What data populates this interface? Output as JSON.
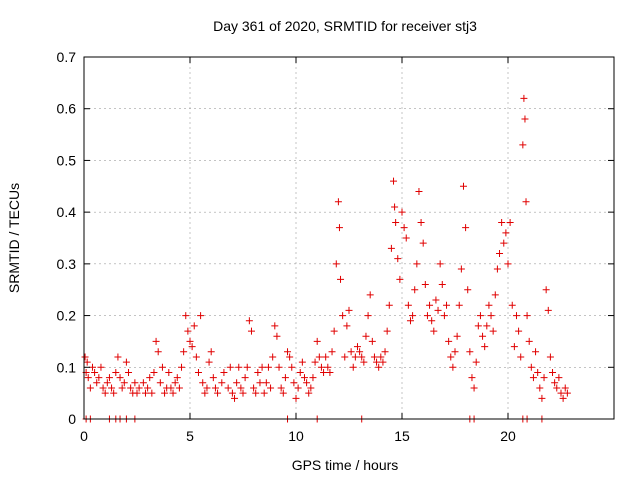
{
  "chart_data": {
    "type": "scatter",
    "title": "Day 361 of 2020, SRMTID for receiver stj3",
    "xlabel": "GPS time / hours",
    "ylabel": "SRMTID / TECUs",
    "xlim": [
      0,
      25
    ],
    "ylim": [
      0,
      0.7
    ],
    "x_ticks": [
      0,
      5,
      10,
      15,
      20
    ],
    "y_ticks": [
      0,
      0.1,
      0.2,
      0.3,
      0.4,
      0.5,
      0.6,
      0.7
    ],
    "x_tick_labels": [
      "0",
      "5",
      "10",
      "15",
      "20"
    ],
    "y_tick_labels": [
      "0",
      "0.1",
      "0.2",
      "0.3",
      "0.4",
      "0.5",
      "0.6",
      "0.7"
    ],
    "grid": true,
    "marker": "+",
    "color": "#e00000",
    "series": [
      {
        "name": "SRMTID",
        "points": [
          [
            0.05,
            0.12
          ],
          [
            0.1,
            0.09
          ],
          [
            0.15,
            0.11
          ],
          [
            0.2,
            0.08
          ],
          [
            0.3,
            0.06
          ],
          [
            0.4,
            0.1
          ],
          [
            0.5,
            0.09
          ],
          [
            0.6,
            0.07
          ],
          [
            0.7,
            0.08
          ],
          [
            0.8,
            0.1
          ],
          [
            0.9,
            0.06
          ],
          [
            1.0,
            0.05
          ],
          [
            1.1,
            0.07
          ],
          [
            1.2,
            0.08
          ],
          [
            1.3,
            0.06
          ],
          [
            1.4,
            0.05
          ],
          [
            1.5,
            0.09
          ],
          [
            1.6,
            0.12
          ],
          [
            1.7,
            0.08
          ],
          [
            1.8,
            0.06
          ],
          [
            1.9,
            0.07
          ],
          [
            2.0,
            0.11
          ],
          [
            2.1,
            0.09
          ],
          [
            2.2,
            0.06
          ],
          [
            2.3,
            0.05
          ],
          [
            2.4,
            0.07
          ],
          [
            2.5,
            0.05
          ],
          [
            2.6,
            0.06
          ],
          [
            2.8,
            0.07
          ],
          [
            2.9,
            0.05
          ],
          [
            3.0,
            0.06
          ],
          [
            3.1,
            0.08
          ],
          [
            3.2,
            0.05
          ],
          [
            3.3,
            0.09
          ],
          [
            3.4,
            0.15
          ],
          [
            3.5,
            0.13
          ],
          [
            3.6,
            0.07
          ],
          [
            3.7,
            0.1
          ],
          [
            3.8,
            0.05
          ],
          [
            3.9,
            0.06
          ],
          [
            4.0,
            0.09
          ],
          [
            4.1,
            0.06
          ],
          [
            4.2,
            0.05
          ],
          [
            4.3,
            0.07
          ],
          [
            4.4,
            0.08
          ],
          [
            4.5,
            0.06
          ],
          [
            4.6,
            0.1
          ],
          [
            4.7,
            0.13
          ],
          [
            4.8,
            0.2
          ],
          [
            4.9,
            0.17
          ],
          [
            5.0,
            0.15
          ],
          [
            5.1,
            0.14
          ],
          [
            5.2,
            0.18
          ],
          [
            5.3,
            0.12
          ],
          [
            5.4,
            0.09
          ],
          [
            5.5,
            0.2
          ],
          [
            5.6,
            0.07
          ],
          [
            5.7,
            0.05
          ],
          [
            5.8,
            0.06
          ],
          [
            5.9,
            0.11
          ],
          [
            6.0,
            0.13
          ],
          [
            6.1,
            0.08
          ],
          [
            6.2,
            0.06
          ],
          [
            6.3,
            0.05
          ],
          [
            6.5,
            0.07
          ],
          [
            6.6,
            0.09
          ],
          [
            6.8,
            0.06
          ],
          [
            6.9,
            0.1
          ],
          [
            7.0,
            0.05
          ],
          [
            7.1,
            0.04
          ],
          [
            7.2,
            0.07
          ],
          [
            7.3,
            0.1
          ],
          [
            7.4,
            0.06
          ],
          [
            7.5,
            0.05
          ],
          [
            7.6,
            0.08
          ],
          [
            7.7,
            0.1
          ],
          [
            7.8,
            0.19
          ],
          [
            7.9,
            0.17
          ],
          [
            8.0,
            0.06
          ],
          [
            8.1,
            0.05
          ],
          [
            8.2,
            0.09
          ],
          [
            8.3,
            0.07
          ],
          [
            8.4,
            0.1
          ],
          [
            8.5,
            0.05
          ],
          [
            8.6,
            0.07
          ],
          [
            8.7,
            0.1
          ],
          [
            8.8,
            0.06
          ],
          [
            8.9,
            0.12
          ],
          [
            9.0,
            0.18
          ],
          [
            9.1,
            0.16
          ],
          [
            9.2,
            0.1
          ],
          [
            9.3,
            0.06
          ],
          [
            9.4,
            0.05
          ],
          [
            9.5,
            0.08
          ],
          [
            9.6,
            0.13
          ],
          [
            9.7,
            0.12
          ],
          [
            9.8,
            0.1
          ],
          [
            9.9,
            0.07
          ],
          [
            10.0,
            0.04
          ],
          [
            10.1,
            0.06
          ],
          [
            10.2,
            0.09
          ],
          [
            10.3,
            0.11
          ],
          [
            10.4,
            0.08
          ],
          [
            10.5,
            0.07
          ],
          [
            10.6,
            0.05
          ],
          [
            10.7,
            0.06
          ],
          [
            10.8,
            0.08
          ],
          [
            10.9,
            0.11
          ],
          [
            11.0,
            0.15
          ],
          [
            11.1,
            0.12
          ],
          [
            11.2,
            0.1
          ],
          [
            11.3,
            0.09
          ],
          [
            11.4,
            0.12
          ],
          [
            11.5,
            0.1
          ],
          [
            11.6,
            0.09
          ],
          [
            11.7,
            0.13
          ],
          [
            11.8,
            0.17
          ],
          [
            11.9,
            0.3
          ],
          [
            12.0,
            0.42
          ],
          [
            12.05,
            0.37
          ],
          [
            12.1,
            0.27
          ],
          [
            12.2,
            0.2
          ],
          [
            12.3,
            0.12
          ],
          [
            12.4,
            0.18
          ],
          [
            12.5,
            0.21
          ],
          [
            12.6,
            0.13
          ],
          [
            12.7,
            0.1
          ],
          [
            12.8,
            0.12
          ],
          [
            12.9,
            0.14
          ],
          [
            13.0,
            0.13
          ],
          [
            13.1,
            0.12
          ],
          [
            13.2,
            0.11
          ],
          [
            13.3,
            0.16
          ],
          [
            13.4,
            0.2
          ],
          [
            13.5,
            0.24
          ],
          [
            13.6,
            0.15
          ],
          [
            13.7,
            0.12
          ],
          [
            13.8,
            0.11
          ],
          [
            13.9,
            0.1
          ],
          [
            14.0,
            0.12
          ],
          [
            14.1,
            0.11
          ],
          [
            14.2,
            0.13
          ],
          [
            14.3,
            0.17
          ],
          [
            14.4,
            0.22
          ],
          [
            14.5,
            0.33
          ],
          [
            14.6,
            0.46
          ],
          [
            14.65,
            0.41
          ],
          [
            14.7,
            0.38
          ],
          [
            14.8,
            0.31
          ],
          [
            14.9,
            0.27
          ],
          [
            15.0,
            0.4
          ],
          [
            15.1,
            0.37
          ],
          [
            15.2,
            0.35
          ],
          [
            15.3,
            0.22
          ],
          [
            15.4,
            0.19
          ],
          [
            15.5,
            0.2
          ],
          [
            15.6,
            0.25
          ],
          [
            15.7,
            0.3
          ],
          [
            15.8,
            0.44
          ],
          [
            15.9,
            0.38
          ],
          [
            16.0,
            0.34
          ],
          [
            16.1,
            0.26
          ],
          [
            16.2,
            0.2
          ],
          [
            16.3,
            0.22
          ],
          [
            16.4,
            0.19
          ],
          [
            16.5,
            0.17
          ],
          [
            16.6,
            0.23
          ],
          [
            16.7,
            0.21
          ],
          [
            16.8,
            0.3
          ],
          [
            16.9,
            0.26
          ],
          [
            17.0,
            0.2
          ],
          [
            17.1,
            0.22
          ],
          [
            17.2,
            0.15
          ],
          [
            17.3,
            0.12
          ],
          [
            17.4,
            0.1
          ],
          [
            17.5,
            0.13
          ],
          [
            17.6,
            0.16
          ],
          [
            17.7,
            0.22
          ],
          [
            17.8,
            0.29
          ],
          [
            17.9,
            0.45
          ],
          [
            18.0,
            0.37
          ],
          [
            18.1,
            0.25
          ],
          [
            18.2,
            0.13
          ],
          [
            18.3,
            0.08
          ],
          [
            18.4,
            0.06
          ],
          [
            18.5,
            0.11
          ],
          [
            18.6,
            0.18
          ],
          [
            18.7,
            0.2
          ],
          [
            18.8,
            0.16
          ],
          [
            18.9,
            0.14
          ],
          [
            19.0,
            0.18
          ],
          [
            19.1,
            0.22
          ],
          [
            19.2,
            0.2
          ],
          [
            19.3,
            0.17
          ],
          [
            19.4,
            0.24
          ],
          [
            19.5,
            0.29
          ],
          [
            19.6,
            0.32
          ],
          [
            19.7,
            0.38
          ],
          [
            19.8,
            0.34
          ],
          [
            19.9,
            0.36
          ],
          [
            20.0,
            0.3
          ],
          [
            20.1,
            0.38
          ],
          [
            20.2,
            0.22
          ],
          [
            20.3,
            0.14
          ],
          [
            20.4,
            0.2
          ],
          [
            20.5,
            0.17
          ],
          [
            20.6,
            0.12
          ],
          [
            20.7,
            0.53
          ],
          [
            20.75,
            0.62
          ],
          [
            20.8,
            0.58
          ],
          [
            20.85,
            0.42
          ],
          [
            20.9,
            0.2
          ],
          [
            21.0,
            0.15
          ],
          [
            21.1,
            0.1
          ],
          [
            21.2,
            0.08
          ],
          [
            21.3,
            0.13
          ],
          [
            21.4,
            0.09
          ],
          [
            21.5,
            0.06
          ],
          [
            21.6,
            0.04
          ],
          [
            21.7,
            0.08
          ],
          [
            21.8,
            0.25
          ],
          [
            21.9,
            0.21
          ],
          [
            22.0,
            0.12
          ],
          [
            22.1,
            0.09
          ],
          [
            22.2,
            0.07
          ],
          [
            22.3,
            0.06
          ],
          [
            22.4,
            0.08
          ],
          [
            22.5,
            0.05
          ],
          [
            22.6,
            0.04
          ],
          [
            22.7,
            0.06
          ],
          [
            22.8,
            0.05
          ],
          [
            0.1,
            0.0
          ],
          [
            0.3,
            0.0
          ],
          [
            1.2,
            0.0
          ],
          [
            1.5,
            0.0
          ],
          [
            1.7,
            0.0
          ],
          [
            2.0,
            0.0
          ],
          [
            2.4,
            0.0
          ],
          [
            9.6,
            0.0
          ],
          [
            11.0,
            0.0
          ],
          [
            13.1,
            0.0
          ],
          [
            18.2,
            0.0
          ],
          [
            18.4,
            0.0
          ],
          [
            20.7,
            0.0
          ],
          [
            20.9,
            0.0
          ],
          [
            21.6,
            0.0
          ]
        ]
      }
    ]
  }
}
